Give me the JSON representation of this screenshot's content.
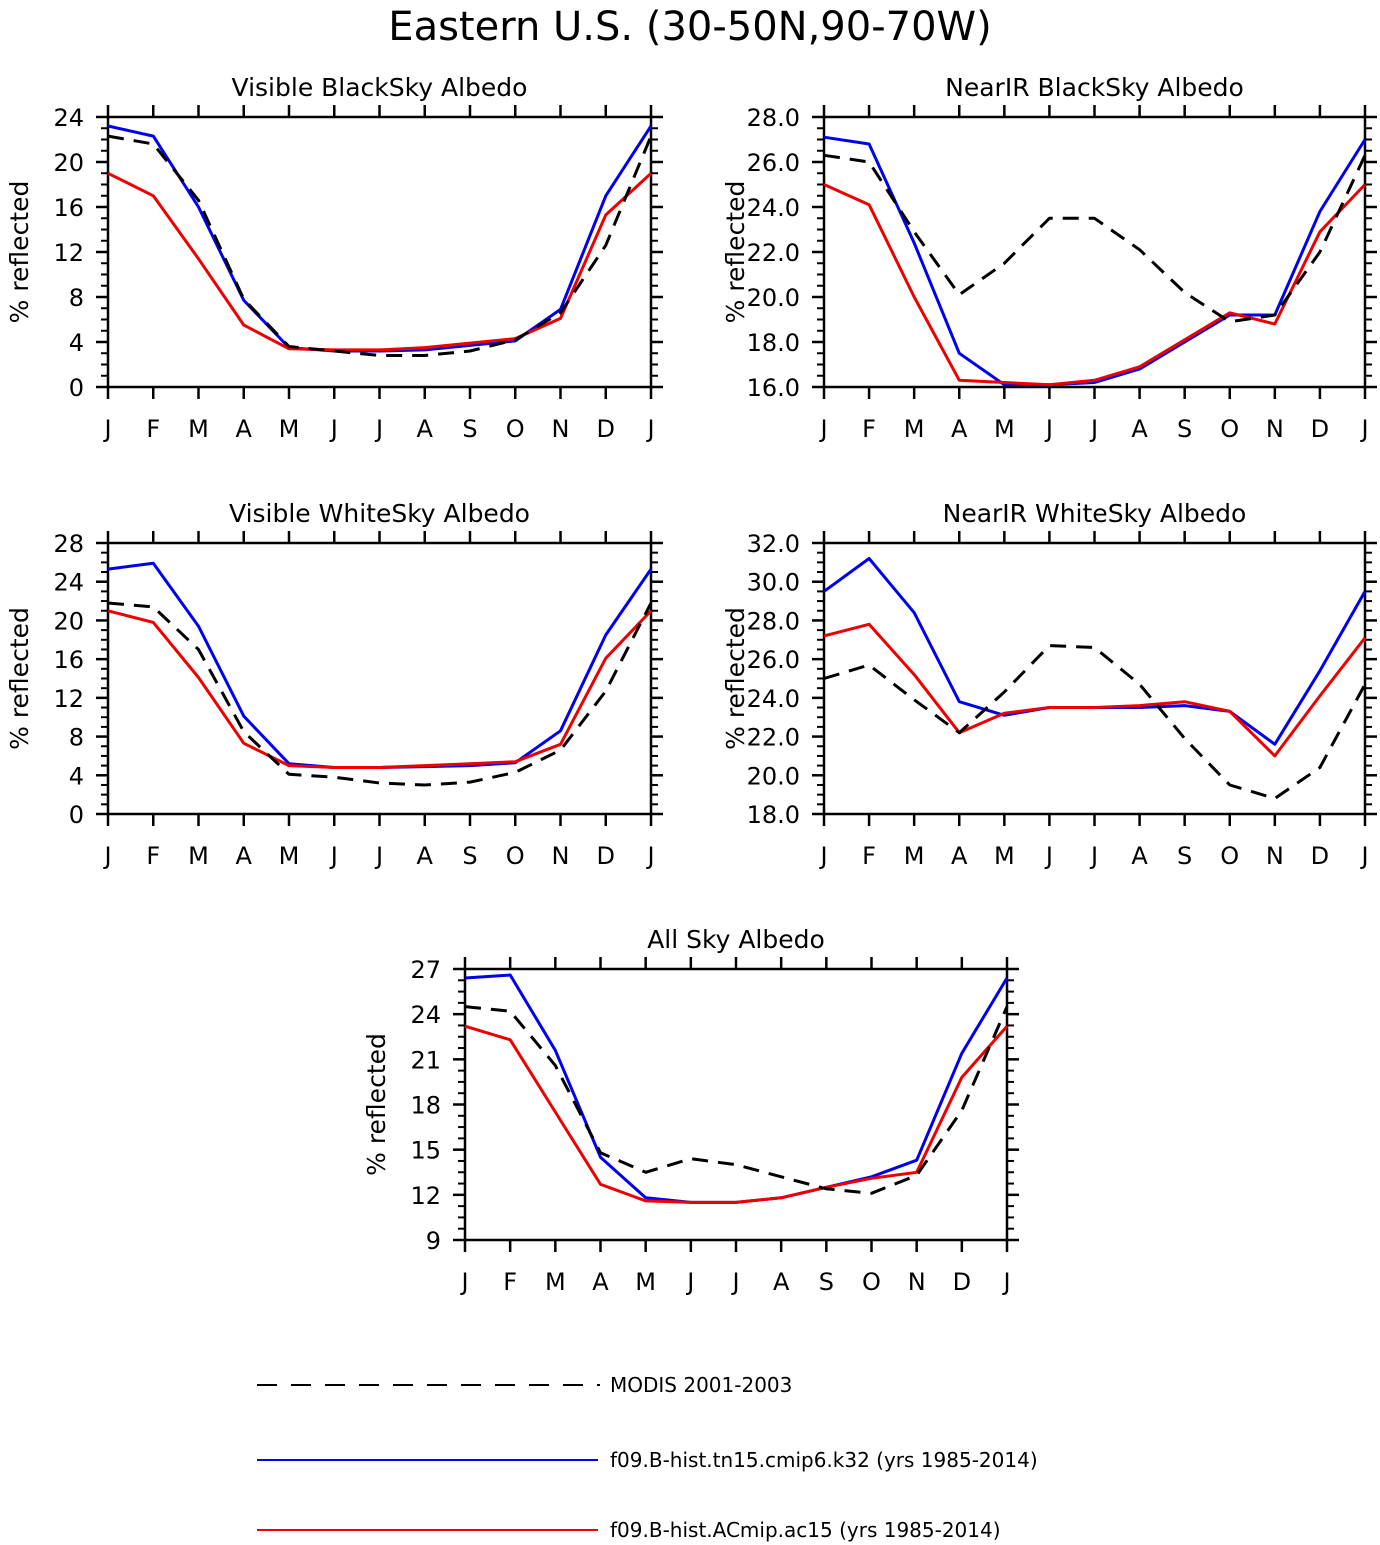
{
  "figure": {
    "title": "Eastern U.S. (30-50N,90-70W)",
    "colors": {
      "modis": "#000000",
      "k32": "#0000ee",
      "ac15": "#ee0000"
    }
  },
  "legend": [
    {
      "series": "modis",
      "label": "MODIS 2001-2003",
      "style": "dashed"
    },
    {
      "series": "k32",
      "label": "f09.B-hist.tn15.cmip6.k32 (yrs 1985-2014)",
      "style": "solid"
    },
    {
      "series": "ac15",
      "label": "f09.B-hist.ACmip.ac15 (yrs 1985-2014)",
      "style": "solid"
    }
  ],
  "chart_data": [
    {
      "type": "line",
      "title": "Visible BlackSky Albedo",
      "ylabel": "% reflected",
      "xlabel": "",
      "categories": [
        "J",
        "F",
        "M",
        "A",
        "M",
        "J",
        "J",
        "A",
        "S",
        "O",
        "N",
        "D",
        "J"
      ],
      "ylim": [
        0,
        24
      ],
      "yticks": [
        "0",
        "4",
        "8",
        "12",
        "16",
        "20",
        "24"
      ],
      "series": [
        {
          "name": "MODIS 2001-2003",
          "key": "modis",
          "values": [
            22.3,
            21.6,
            16.6,
            7.8,
            3.6,
            3.2,
            2.8,
            2.8,
            3.2,
            4.2,
            6.6,
            12.6,
            22.3
          ]
        },
        {
          "name": "f09.B-hist.tn15.cmip6.k32 (yrs 1985-2014)",
          "key": "k32",
          "values": [
            23.2,
            22.3,
            16.0,
            7.7,
            3.5,
            3.2,
            3.2,
            3.3,
            3.7,
            4.1,
            6.9,
            17.0,
            23.2
          ]
        },
        {
          "name": "f09.B-hist.ACmip.ac15 (yrs 1985-2014)",
          "key": "ac15",
          "values": [
            19.0,
            17.0,
            11.4,
            5.5,
            3.4,
            3.3,
            3.3,
            3.5,
            3.9,
            4.3,
            6.1,
            15.3,
            19.0
          ]
        }
      ]
    },
    {
      "type": "line",
      "title": "NearIR BlackSky Albedo",
      "ylabel": "% reflected",
      "xlabel": "",
      "categories": [
        "J",
        "F",
        "M",
        "A",
        "M",
        "J",
        "J",
        "A",
        "S",
        "O",
        "N",
        "D",
        "J"
      ],
      "ylim": [
        16,
        28
      ],
      "yticks": [
        "16.0",
        "18.0",
        "20.0",
        "22.0",
        "24.0",
        "26.0",
        "28.0"
      ],
      "series": [
        {
          "name": "MODIS 2001-2003",
          "key": "modis",
          "values": [
            26.3,
            26.0,
            22.9,
            20.1,
            21.5,
            23.5,
            23.5,
            22.1,
            20.2,
            18.9,
            19.2,
            22.0,
            26.3
          ]
        },
        {
          "name": "f09.B-hist.tn15.cmip6.k32 (yrs 1985-2014)",
          "key": "k32",
          "values": [
            27.1,
            26.8,
            22.4,
            17.5,
            16.1,
            16.1,
            16.2,
            16.8,
            18.0,
            19.2,
            19.2,
            23.8,
            27.0
          ]
        },
        {
          "name": "f09.B-hist.ACmip.ac15 (yrs 1985-2014)",
          "key": "ac15",
          "values": [
            25.0,
            24.1,
            20.0,
            16.3,
            16.2,
            16.1,
            16.3,
            16.9,
            18.1,
            19.3,
            18.8,
            22.9,
            25.0
          ]
        }
      ]
    },
    {
      "type": "line",
      "title": "Visible WhiteSky Albedo",
      "ylabel": "% reflected",
      "xlabel": "",
      "categories": [
        "J",
        "F",
        "M",
        "A",
        "M",
        "J",
        "J",
        "A",
        "S",
        "O",
        "N",
        "D",
        "J"
      ],
      "ylim": [
        0,
        28
      ],
      "yticks": [
        "0",
        "4",
        "8",
        "12",
        "16",
        "20",
        "24",
        "28"
      ],
      "series": [
        {
          "name": "MODIS 2001-2003",
          "key": "modis",
          "values": [
            21.8,
            21.4,
            17.0,
            8.5,
            4.1,
            3.8,
            3.2,
            3.0,
            3.3,
            4.3,
            6.6,
            12.7,
            21.8
          ]
        },
        {
          "name": "f09.B-hist.tn15.cmip6.k32 (yrs 1985-2014)",
          "key": "k32",
          "values": [
            25.3,
            25.9,
            19.4,
            10.1,
            5.2,
            4.8,
            4.8,
            4.9,
            5.0,
            5.3,
            8.6,
            18.5,
            25.3
          ]
        },
        {
          "name": "f09.B-hist.ACmip.ac15 (yrs 1985-2014)",
          "key": "ac15",
          "values": [
            21.0,
            19.8,
            14.1,
            7.3,
            5.0,
            4.8,
            4.8,
            5.0,
            5.2,
            5.4,
            7.2,
            16.1,
            21.0
          ]
        }
      ]
    },
    {
      "type": "line",
      "title": "NearIR WhiteSky Albedo",
      "ylabel": "% reflected",
      "xlabel": "",
      "categories": [
        "J",
        "F",
        "M",
        "A",
        "M",
        "J",
        "J",
        "A",
        "S",
        "O",
        "N",
        "D",
        "J"
      ],
      "ylim": [
        18,
        32
      ],
      "yticks": [
        "18.0",
        "20.0",
        "22.0",
        "24.0",
        "26.0",
        "28.0",
        "30.0",
        "32.0"
      ],
      "series": [
        {
          "name": "MODIS 2001-2003",
          "key": "modis",
          "values": [
            25.0,
            25.7,
            23.9,
            22.2,
            24.3,
            26.7,
            26.6,
            24.7,
            21.9,
            19.5,
            18.8,
            20.4,
            24.7
          ]
        },
        {
          "name": "f09.B-hist.tn15.cmip6.k32 (yrs 1985-2014)",
          "key": "k32",
          "values": [
            29.5,
            31.2,
            28.4,
            23.8,
            23.1,
            23.5,
            23.5,
            23.5,
            23.6,
            23.3,
            21.6,
            25.4,
            29.5
          ]
        },
        {
          "name": "f09.B-hist.ACmip.ac15 (yrs 1985-2014)",
          "key": "ac15",
          "values": [
            27.2,
            27.8,
            25.2,
            22.2,
            23.2,
            23.5,
            23.5,
            23.6,
            23.8,
            23.3,
            21.0,
            24.1,
            27.1
          ]
        }
      ]
    },
    {
      "type": "line",
      "title": "All Sky Albedo",
      "ylabel": "% reflected",
      "xlabel": "",
      "categories": [
        "J",
        "F",
        "M",
        "A",
        "M",
        "J",
        "J",
        "A",
        "S",
        "O",
        "N",
        "D",
        "J"
      ],
      "ylim": [
        9,
        27
      ],
      "yticks": [
        "9",
        "12",
        "15",
        "18",
        "21",
        "24",
        "27"
      ],
      "series": [
        {
          "name": "MODIS 2001-2003",
          "key": "modis",
          "values": [
            24.5,
            24.2,
            20.6,
            14.8,
            13.5,
            14.4,
            14.0,
            13.2,
            12.4,
            12.1,
            13.3,
            17.6,
            24.5
          ]
        },
        {
          "name": "f09.B-hist.tn15.cmip6.k32 (yrs 1985-2014)",
          "key": "k32",
          "values": [
            26.4,
            26.6,
            21.6,
            14.5,
            11.8,
            11.5,
            11.5,
            11.8,
            12.5,
            13.2,
            14.3,
            21.4,
            26.4
          ]
        },
        {
          "name": "f09.B-hist.ACmip.ac15 (yrs 1985-2014)",
          "key": "ac15",
          "values": [
            23.2,
            22.3,
            17.5,
            12.7,
            11.6,
            11.5,
            11.5,
            11.8,
            12.5,
            13.1,
            13.5,
            19.8,
            23.2
          ]
        }
      ]
    }
  ]
}
